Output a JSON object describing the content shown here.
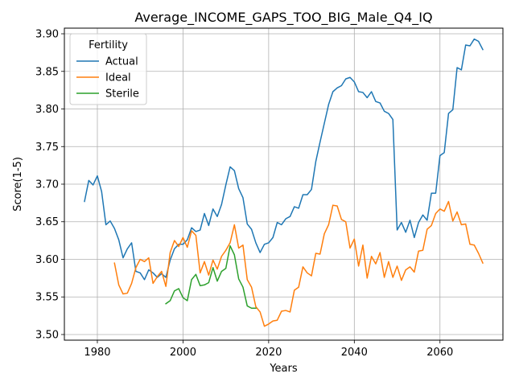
{
  "chart_data": {
    "type": "line",
    "title": "Average_INCOME_GAPS_TOO_BIG_Male_Q4_IQ",
    "xlabel": "Years",
    "ylabel": "Score(1-5)",
    "xlim": [
      1972.3,
      2074.7
    ],
    "ylim": [
      3.4925,
      3.9075
    ],
    "xticks": [
      1980,
      2000,
      2020,
      2040,
      2060
    ],
    "yticks": [
      3.5,
      3.55,
      3.6,
      3.65,
      3.7,
      3.75,
      3.8,
      3.85,
      3.9
    ],
    "ytick_labels": [
      "3.50",
      "3.55",
      "3.60",
      "3.65",
      "3.70",
      "3.75",
      "3.80",
      "3.85",
      "3.90"
    ],
    "grid": true,
    "legend": {
      "title": "Fertility",
      "position": "top-left"
    },
    "series": [
      {
        "name": "Actual",
        "color": "#1f77b4",
        "x": [
          1977,
          1978,
          1979,
          1980,
          1981,
          1982,
          1983,
          1984,
          1985,
          1986,
          1987,
          1988,
          1989,
          1990,
          1991,
          1992,
          1993,
          1994,
          1995,
          1996,
          1997,
          1998,
          1999,
          2000,
          2001,
          2002,
          2003,
          2004,
          2005,
          2006,
          2007,
          2008,
          2009,
          2010,
          2011,
          2012,
          2013,
          2014,
          2015,
          2016,
          2017,
          2018,
          2019,
          2020,
          2021,
          2022,
          2023,
          2024,
          2025,
          2026,
          2027,
          2028,
          2029,
          2030,
          2031,
          2032,
          2033,
          2034,
          2035,
          2036,
          2037,
          2038,
          2039,
          2040,
          2041,
          2042,
          2043,
          2044,
          2045,
          2046,
          2047,
          2048,
          2049,
          2050,
          2051,
          2052,
          2053,
          2054,
          2055,
          2056,
          2057,
          2058,
          2059,
          2060,
          2061,
          2062,
          2063,
          2064,
          2065,
          2066,
          2067,
          2068,
          2069,
          2070
        ],
        "values": [
          3.677,
          3.705,
          3.699,
          3.711,
          3.69,
          3.646,
          3.651,
          3.641,
          3.626,
          3.602,
          3.614,
          3.622,
          3.584,
          3.582,
          3.573,
          3.586,
          3.582,
          3.576,
          3.581,
          3.576,
          3.599,
          3.614,
          3.62,
          3.62,
          3.626,
          3.642,
          3.637,
          3.639,
          3.661,
          3.645,
          3.667,
          3.657,
          3.673,
          3.699,
          3.723,
          3.718,
          3.694,
          3.682,
          3.647,
          3.64,
          3.622,
          3.609,
          3.62,
          3.622,
          3.629,
          3.649,
          3.646,
          3.654,
          3.657,
          3.67,
          3.668,
          3.686,
          3.686,
          3.693,
          3.73,
          3.756,
          3.781,
          3.806,
          3.823,
          3.828,
          3.831,
          3.84,
          3.842,
          3.836,
          3.823,
          3.822,
          3.815,
          3.823,
          3.81,
          3.808,
          3.797,
          3.794,
          3.786,
          3.639,
          3.649,
          3.636,
          3.652,
          3.629,
          3.649,
          3.659,
          3.652,
          3.688,
          3.688,
          3.738,
          3.742,
          3.794,
          3.799,
          3.855,
          3.852,
          3.885,
          3.884,
          3.893,
          3.89,
          3.879
        ]
      },
      {
        "name": "Ideal",
        "color": "#ff7f0e",
        "x": [
          1984,
          1985,
          1986,
          1987,
          1988,
          1989,
          1990,
          1991,
          1992,
          1993,
          1994,
          1995,
          1996,
          1997,
          1998,
          1999,
          2000,
          2001,
          2002,
          2003,
          2004,
          2005,
          2006,
          2007,
          2008,
          2009,
          2010,
          2011,
          2012,
          2013,
          2014,
          2015,
          2016,
          2017,
          2018,
          2019,
          2020,
          2021,
          2022,
          2023,
          2024,
          2025,
          2026,
          2027,
          2028,
          2029,
          2030,
          2031,
          2032,
          2033,
          2034,
          2035,
          2036,
          2037,
          2038,
          2039,
          2040,
          2041,
          2042,
          2043,
          2044,
          2045,
          2046,
          2047,
          2048,
          2049,
          2050,
          2051,
          2052,
          2053,
          2054,
          2055,
          2056,
          2057,
          2058,
          2059,
          2060,
          2061,
          2062,
          2063,
          2064,
          2065,
          2066,
          2067,
          2068,
          2069,
          2070
        ],
        "values": [
          3.595,
          3.566,
          3.554,
          3.555,
          3.568,
          3.589,
          3.6,
          3.597,
          3.602,
          3.568,
          3.577,
          3.584,
          3.564,
          3.609,
          3.625,
          3.617,
          3.629,
          3.616,
          3.638,
          3.632,
          3.582,
          3.597,
          3.579,
          3.599,
          3.587,
          3.604,
          3.612,
          3.622,
          3.646,
          3.615,
          3.619,
          3.573,
          3.563,
          3.537,
          3.53,
          3.511,
          3.514,
          3.518,
          3.519,
          3.531,
          3.532,
          3.53,
          3.559,
          3.563,
          3.59,
          3.582,
          3.578,
          3.608,
          3.607,
          3.634,
          3.646,
          3.672,
          3.671,
          3.653,
          3.65,
          3.615,
          3.627,
          3.591,
          3.619,
          3.575,
          3.604,
          3.594,
          3.609,
          3.576,
          3.597,
          3.576,
          3.591,
          3.572,
          3.586,
          3.59,
          3.583,
          3.611,
          3.612,
          3.64,
          3.645,
          3.661,
          3.667,
          3.664,
          3.677,
          3.651,
          3.663,
          3.646,
          3.647,
          3.62,
          3.619,
          3.608,
          3.595
        ]
      },
      {
        "name": "Sterile",
        "color": "#2ca02c",
        "x": [
          1996,
          1997,
          1998,
          1999,
          2000,
          2001,
          2002,
          2003,
          2004,
          2005,
          2006,
          2007,
          2008,
          2009,
          2010,
          2011,
          2012,
          2013,
          2014,
          2015,
          2016,
          2017
        ],
        "values": [
          3.541,
          3.545,
          3.558,
          3.561,
          3.549,
          3.545,
          3.573,
          3.58,
          3.565,
          3.566,
          3.569,
          3.589,
          3.571,
          3.584,
          3.588,
          3.618,
          3.606,
          3.574,
          3.563,
          3.538,
          3.535,
          3.535
        ]
      }
    ]
  }
}
